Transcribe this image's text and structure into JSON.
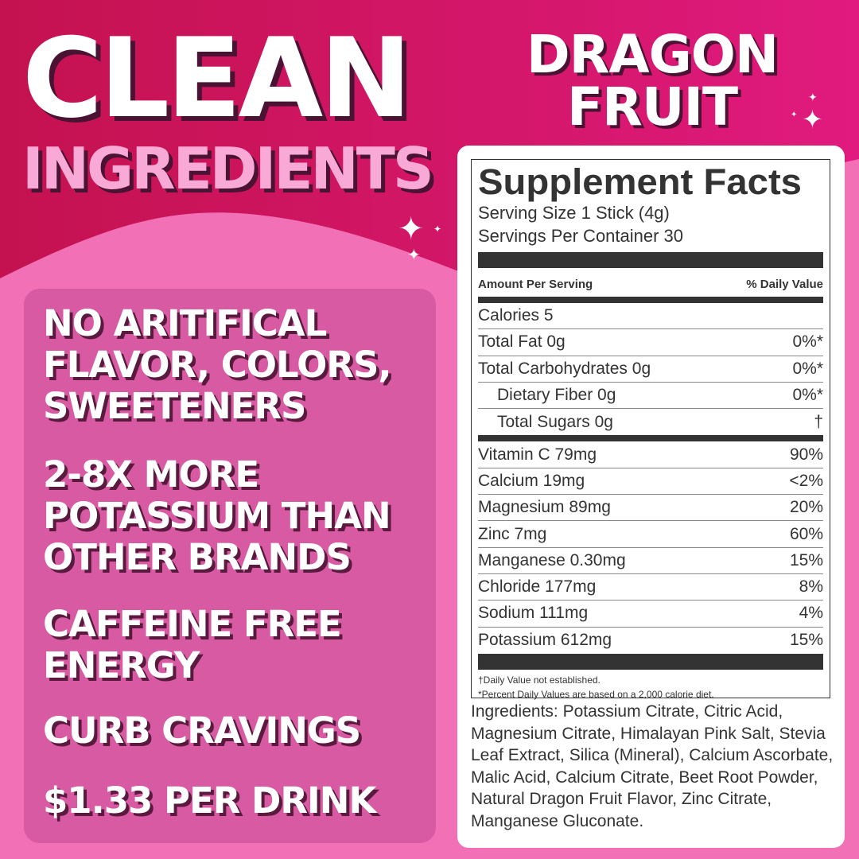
{
  "colors": {
    "top": "#c8145a",
    "pink": "#f270b5",
    "panel": "#d85aa3",
    "shadow": "#4a1233"
  },
  "headline": {
    "line1": "CLEAN",
    "line2": "INGREDIENTS"
  },
  "flavor": "DRAGON FRUIT",
  "benefits": [
    "NO ARITIFICAL FLAVOR, COLORS, SWEETENERS",
    "2-8X MORE POTASSIUM THAN OTHER BRANDS",
    "CAFFEINE FREE ENERGY",
    "CURB CRAVINGS",
    "$1.33 PER DRINK"
  ],
  "facts": {
    "title": "Supplement Facts",
    "serving_size": "Serving Size 1 Stick (4g)",
    "servings": "Servings Per Container 30",
    "amount_header": "Amount Per Serving",
    "dv_header": "% Daily Value",
    "calories": "Calories 5",
    "rows1": [
      {
        "name": "Total Fat 0g",
        "dv": "0%*"
      },
      {
        "name": "Total Carbohydrates 0g",
        "dv": "0%*"
      },
      {
        "name": "Dietary Fiber 0g",
        "dv": "0%*"
      },
      {
        "name": "Total Sugars 0g",
        "dv": "†"
      }
    ],
    "rows2": [
      {
        "name": "Vitamin C 79mg",
        "dv": "90%"
      },
      {
        "name": "Calcium 19mg",
        "dv": "<2%"
      },
      {
        "name": "Magnesium 89mg",
        "dv": "20%"
      },
      {
        "name": "Zinc 7mg",
        "dv": "60%"
      },
      {
        "name": "Manganese 0.30mg",
        "dv": "15%"
      },
      {
        "name": "Chloride 177mg",
        "dv": "8%"
      },
      {
        "name": "Sodium 111mg",
        "dv": "4%"
      },
      {
        "name": "Potassium 612mg",
        "dv": "15%"
      }
    ],
    "footnote1": "†Daily Value not established.",
    "footnote2": "*Percent Daily Values are based on a 2,000 calorie diet."
  },
  "ingredients": "Ingredients: Potassium Citrate, Citric Acid, Magnesium Citrate, Himalayan Pink Salt, Stevia Leaf Extract, Silica (Mineral), Calcium Ascorbate, Malic Acid, Calcium Citrate, Beet Root Powder, Natural Dragon Fruit Flavor, Zinc Citrate, Manganese Gluconate."
}
